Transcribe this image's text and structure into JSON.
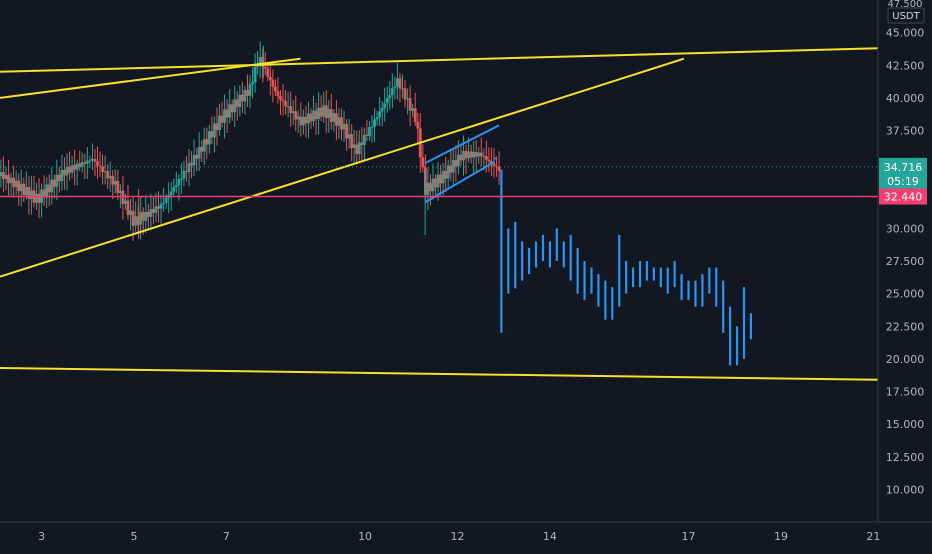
{
  "chart_data": {
    "type": "candlestick",
    "currency": "USDT",
    "top_tick_partial": "47.500",
    "y_ticks": [
      "45.000",
      "42.500",
      "40.000",
      "37.500",
      "35.000",
      "32.500",
      "30.000",
      "27.500",
      "25.000",
      "22.500",
      "20.000",
      "17.500",
      "15.000",
      "12.500",
      "10.000"
    ],
    "y_tick_values": [
      45,
      42.5,
      40,
      37.5,
      35,
      32.5,
      30,
      27.5,
      25,
      22.5,
      20,
      17.5,
      15,
      12.5,
      10
    ],
    "ylim": [
      7.5,
      47.5
    ],
    "x_ticks": [
      "3",
      "5",
      "7",
      "10",
      "12",
      "14",
      "17",
      "19",
      "21"
    ],
    "x_tick_days": [
      3,
      5,
      7,
      10,
      12,
      14,
      17,
      19,
      21
    ],
    "xlim": [
      2.1,
      21.1
    ],
    "last_price": {
      "value": 34.716,
      "label": "34.716",
      "countdown": "05:19",
      "color": "#26a69a"
    },
    "support_level": {
      "value": 32.44,
      "label": "32.440",
      "color": "#f23e70"
    },
    "colors": {
      "up": "#26a69a",
      "down": "#ef5350",
      "trendline": "#f5e12e",
      "projection": "#2b93f0",
      "background": "#131722",
      "axis_text": "#b2b5be"
    },
    "trendlines": [
      {
        "from": [
          2.1,
          42.0
        ],
        "to": [
          21.1,
          43.8
        ]
      },
      {
        "from": [
          2.1,
          40.0
        ],
        "to": [
          8.6,
          43.0
        ]
      },
      {
        "from": [
          2.1,
          26.3
        ],
        "to": [
          16.9,
          43.0
        ]
      },
      {
        "from": [
          2.1,
          19.3
        ],
        "to": [
          21.1,
          18.4
        ]
      }
    ],
    "flag_channel": {
      "upper": {
        "from": [
          11.3,
          35.0
        ],
        "to": [
          12.9,
          37.9
        ]
      },
      "lower": {
        "from": [
          11.3,
          32.0
        ],
        "to": [
          12.8,
          35.1
        ]
      },
      "dash": {
        "from": [
          12.7,
          35.0
        ],
        "to": [
          12.9,
          35.6
        ]
      }
    },
    "projection_bars": [
      [
        12.95,
        34.5,
        22.0
      ],
      [
        13.1,
        30.0,
        25.0
      ],
      [
        13.25,
        30.5,
        25.4
      ],
      [
        13.4,
        29.0,
        26.0
      ],
      [
        13.55,
        28.5,
        26.5
      ],
      [
        13.7,
        29.0,
        27.0
      ],
      [
        13.85,
        29.5,
        27.5
      ],
      [
        14.0,
        29.0,
        27.0
      ],
      [
        14.15,
        30.0,
        27.5
      ],
      [
        14.3,
        29.0,
        27.0
      ],
      [
        14.45,
        29.5,
        26.0
      ],
      [
        14.6,
        28.5,
        25.0
      ],
      [
        14.75,
        27.5,
        24.5
      ],
      [
        14.9,
        27.0,
        25.0
      ],
      [
        15.05,
        26.5,
        24.0
      ],
      [
        15.2,
        26.0,
        23.0
      ],
      [
        15.35,
        25.5,
        23.0
      ],
      [
        15.5,
        29.5,
        24.0
      ],
      [
        15.65,
        27.5,
        25.0
      ],
      [
        15.8,
        27.0,
        25.5
      ],
      [
        15.95,
        27.5,
        25.5
      ],
      [
        16.1,
        27.5,
        26.0
      ],
      [
        16.25,
        27.0,
        26.0
      ],
      [
        16.4,
        27.0,
        25.5
      ],
      [
        16.55,
        27.0,
        25.0
      ],
      [
        16.7,
        27.5,
        25.5
      ],
      [
        16.85,
        26.5,
        24.5
      ],
      [
        17.0,
        26.0,
        24.5
      ],
      [
        17.15,
        26.0,
        24.0
      ],
      [
        17.3,
        26.5,
        24.0
      ],
      [
        17.45,
        27.0,
        25.0
      ],
      [
        17.6,
        27.0,
        24.0
      ],
      [
        17.75,
        26.0,
        22.0
      ],
      [
        17.9,
        24.0,
        19.5
      ],
      [
        18.05,
        22.5,
        19.5
      ],
      [
        18.2,
        25.5,
        20.0
      ],
      [
        18.35,
        23.5,
        21.5
      ]
    ]
  }
}
